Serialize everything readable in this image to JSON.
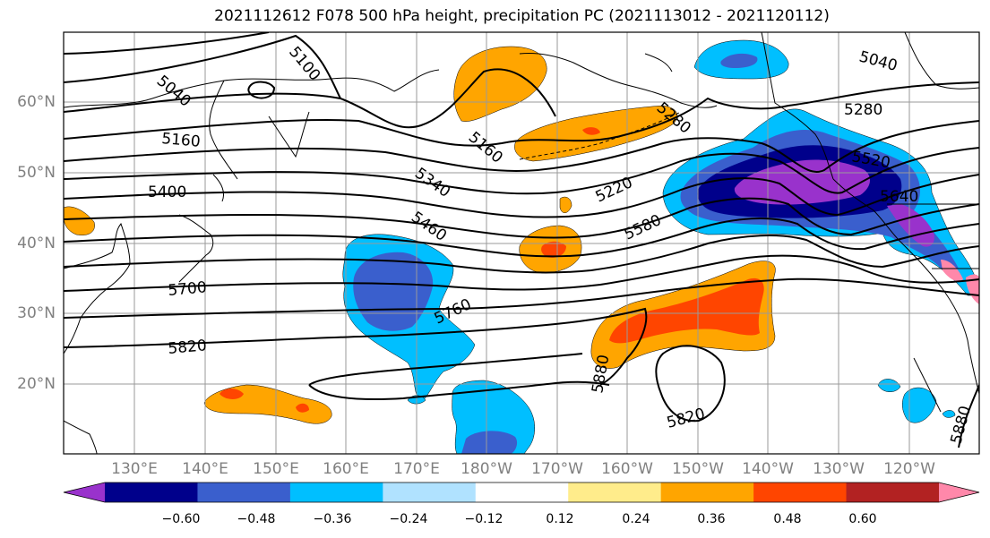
{
  "title": "2021112612 F078 500 hPa height, precipitation PC (2021113012 - 2021120112)",
  "longitude_labels": [
    "130°E",
    "140°E",
    "150°E",
    "160°E",
    "170°E",
    "180°W",
    "170°W",
    "160°W",
    "150°W",
    "140°W",
    "130°W",
    "120°W"
  ],
  "latitude_labels": [
    "20°N",
    "30°N",
    "40°N",
    "50°N",
    "60°N"
  ],
  "contour_labels": [
    "5040",
    "5100",
    "5160",
    "5220",
    "5280",
    "5340",
    "5400",
    "5460",
    "5520",
    "5580",
    "5640",
    "5700",
    "5760",
    "5820",
    "5880"
  ],
  "colorbar": {
    "ticks": [
      "−0.60",
      "−0.48",
      "−0.36",
      "−0.24",
      "−0.12",
      "0.12",
      "0.24",
      "0.36",
      "0.48",
      "0.60"
    ],
    "colors": [
      "#9932cc",
      "#00008b",
      "#3a5fcd",
      "#00bfff",
      "#b0e2ff",
      "#ffffff",
      "#ffec8b",
      "#ffa500",
      "#ff4500",
      "#b22222",
      "#ff88aa"
    ]
  },
  "colors": {
    "contour": "#000000",
    "coast": "#000000",
    "grid": "#9a9a9a",
    "axis_label": "#808080"
  }
}
